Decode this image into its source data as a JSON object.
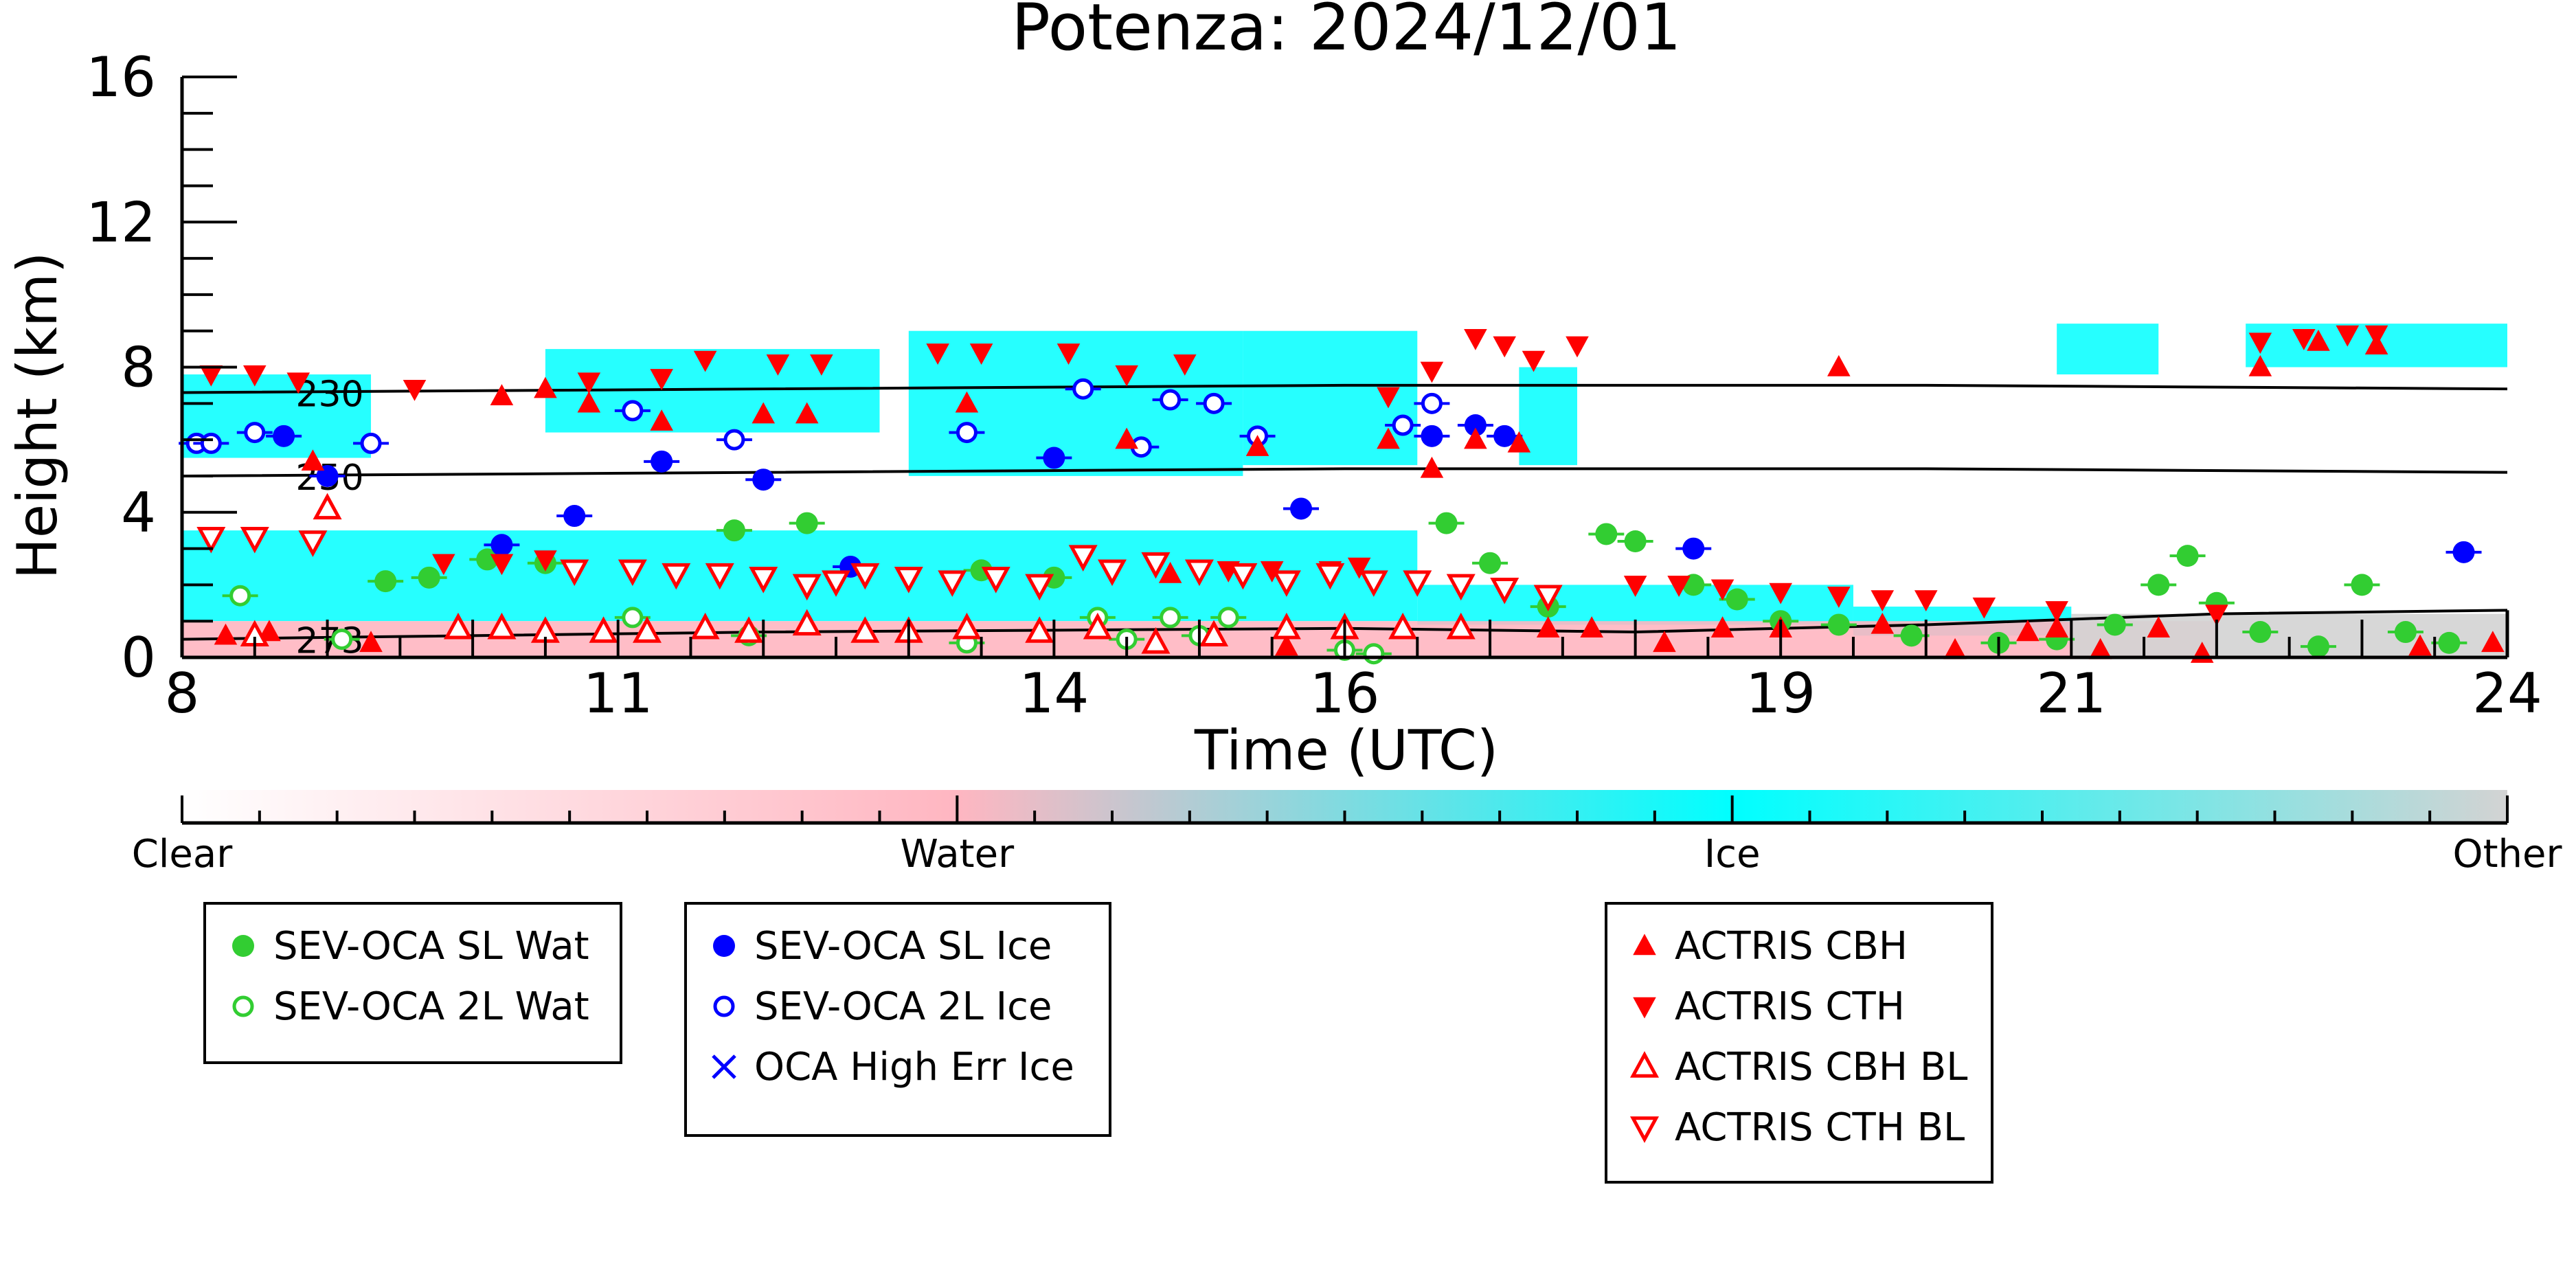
{
  "chart_data": {
    "type": "scatter",
    "title": "Potenza: 2024/12/01",
    "xlabel": "Time (UTC)",
    "ylabel": "Height (km)",
    "xlim": [
      8,
      24
    ],
    "ylim": [
      0,
      16
    ],
    "x_tick_labels": [
      "8",
      "11",
      "14",
      "16",
      "19",
      "21",
      "24"
    ],
    "y_tick_labels": [
      "0",
      "4",
      "8",
      "12",
      "16"
    ],
    "grid": false,
    "isotherms": [
      {
        "label": "230",
        "points": [
          [
            8,
            7.3
          ],
          [
            12,
            7.4
          ],
          [
            16,
            7.5
          ],
          [
            20,
            7.5
          ],
          [
            24,
            7.4
          ]
        ]
      },
      {
        "label": "250",
        "points": [
          [
            8,
            5.0
          ],
          [
            12,
            5.1
          ],
          [
            16,
            5.2
          ],
          [
            20,
            5.2
          ],
          [
            24,
            5.1
          ]
        ]
      },
      {
        "label": "273",
        "points": [
          [
            8,
            0.5
          ],
          [
            12,
            0.7
          ],
          [
            16,
            0.8
          ],
          [
            18,
            0.7
          ],
          [
            20,
            0.9
          ],
          [
            22,
            1.2
          ],
          [
            24,
            1.3
          ]
        ]
      }
    ],
    "phase_colorbar": {
      "labels": [
        "Clear",
        "Water",
        "Ice",
        "Other"
      ],
      "colors": [
        "#ffffff",
        "#ffb6c1",
        "#00ffff",
        "#d3d3d3"
      ]
    },
    "cloud_regions": [
      {
        "phase": "ice",
        "x0": 8.0,
        "x1": 9.3,
        "y0": 5.5,
        "y1": 7.8
      },
      {
        "phase": "ice",
        "x0": 10.5,
        "x1": 12.8,
        "y0": 6.2,
        "y1": 8.5
      },
      {
        "phase": "ice",
        "x0": 13.0,
        "x1": 15.3,
        "y0": 5.0,
        "y1": 9.0
      },
      {
        "phase": "ice",
        "x0": 15.3,
        "x1": 16.5,
        "y0": 5.3,
        "y1": 9.0
      },
      {
        "phase": "ice",
        "x0": 17.2,
        "x1": 17.6,
        "y0": 5.3,
        "y1": 8.0
      },
      {
        "phase": "ice",
        "x0": 20.9,
        "x1": 21.6,
        "y0": 7.8,
        "y1": 9.2
      },
      {
        "phase": "ice",
        "x0": 22.2,
        "x1": 24.0,
        "y0": 8.0,
        "y1": 9.2
      },
      {
        "phase": "ice",
        "x0": 8.0,
        "x1": 16.5,
        "y0": 1.0,
        "y1": 3.5
      },
      {
        "phase": "ice",
        "x0": 16.5,
        "x1": 19.5,
        "y0": 0.9,
        "y1": 2.0
      },
      {
        "phase": "ice",
        "x0": 19.5,
        "x1": 21.0,
        "y0": 0.6,
        "y1": 1.4
      },
      {
        "phase": "water",
        "x0": 8.0,
        "x1": 22.0,
        "y0": 0.0,
        "y1": 1.0
      },
      {
        "phase": "other",
        "x0": 21.0,
        "x1": 24.0,
        "y0": 0.0,
        "y1": 1.2
      }
    ],
    "series": [
      {
        "name": "SEV-OCA SL Wat",
        "marker": "filled-circle",
        "color": "#32cd32",
        "x": [
          9.4,
          9.7,
          10.1,
          10.5,
          11.8,
          12.3,
          13.5,
          14.0,
          16.7,
          17.0,
          17.4,
          17.8,
          18.0,
          18.4,
          18.7,
          19.0,
          19.4,
          19.9,
          20.5,
          20.9,
          21.3,
          21.6,
          21.8,
          22.0,
          22.3,
          22.7,
          23.0,
          23.3,
          23.6
        ],
        "y": [
          2.1,
          2.2,
          2.7,
          2.6,
          3.5,
          3.7,
          2.4,
          2.2,
          3.7,
          2.6,
          1.4,
          3.4,
          3.2,
          2.0,
          1.6,
          1.0,
          0.9,
          0.6,
          0.4,
          0.5,
          0.9,
          2.0,
          2.8,
          1.5,
          0.7,
          0.3,
          2.0,
          0.7,
          0.4
        ]
      },
      {
        "name": "SEV-OCA 2L Wat",
        "marker": "open-circle",
        "color": "#32cd32",
        "x": [
          8.4,
          9.1,
          11.1,
          11.9,
          13.4,
          14.3,
          14.5,
          14.8,
          15.0,
          15.2,
          16.0,
          16.2
        ],
        "y": [
          1.7,
          0.5,
          1.1,
          0.6,
          0.4,
          1.1,
          0.5,
          1.1,
          0.6,
          1.1,
          0.2,
          0.1
        ]
      },
      {
        "name": "SEV-OCA SL Ice",
        "marker": "filled-circle",
        "color": "#0000ff",
        "x": [
          8.7,
          9.0,
          10.2,
          10.7,
          11.3,
          12.0,
          12.6,
          14.0,
          15.7,
          16.6,
          16.9,
          17.1,
          18.4,
          23.7
        ],
        "y": [
          6.1,
          5.0,
          3.1,
          3.9,
          5.4,
          4.9,
          2.5,
          5.5,
          4.1,
          6.1,
          6.4,
          6.1,
          3.0,
          2.9
        ]
      },
      {
        "name": "SEV-OCA 2L Ice",
        "marker": "open-circle",
        "color": "#0000ff",
        "x": [
          8.1,
          8.2,
          8.5,
          9.3,
          11.1,
          11.8,
          13.4,
          14.2,
          14.6,
          14.8,
          15.1,
          15.4,
          16.4,
          16.6
        ],
        "y": [
          5.9,
          5.9,
          6.2,
          5.9,
          6.8,
          6.0,
          6.2,
          7.4,
          5.8,
          7.1,
          7.0,
          6.1,
          6.4,
          7.0
        ]
      },
      {
        "name": "OCA High Err Ice",
        "marker": "cross",
        "color": "#0000ff",
        "x": [],
        "y": []
      },
      {
        "name": "ACTRIS CBH",
        "marker": "triangle-up",
        "color": "#ff0000",
        "x": [
          8.3,
          8.6,
          8.9,
          9.3,
          10.2,
          10.5,
          10.8,
          11.3,
          12.0,
          12.3,
          13.4,
          14.5,
          14.8,
          15.4,
          15.6,
          16.0,
          16.3,
          16.6,
          16.9,
          17.2,
          17.4,
          17.7,
          18.2,
          18.6,
          19.0,
          19.4,
          19.7,
          20.2,
          20.7,
          20.9,
          21.2,
          21.6,
          21.9,
          22.3,
          22.7,
          23.1,
          23.4,
          23.9
        ],
        "y": [
          0.6,
          0.7,
          5.4,
          0.4,
          7.2,
          7.4,
          7.0,
          6.5,
          6.7,
          6.7,
          7.0,
          6.0,
          2.3,
          5.8,
          0.3,
          0.8,
          6.0,
          5.2,
          6.0,
          5.9,
          0.8,
          0.8,
          0.4,
          0.8,
          0.8,
          8.0,
          0.9,
          0.2,
          0.7,
          0.8,
          0.2,
          0.8,
          0.1,
          8.0,
          8.7,
          8.6,
          0.3,
          0.4
        ]
      },
      {
        "name": "ACTRIS CTH",
        "marker": "triangle-down",
        "color": "#ff0000",
        "x": [
          8.2,
          8.5,
          8.8,
          9.6,
          9.8,
          10.2,
          10.5,
          10.8,
          11.3,
          11.6,
          12.1,
          12.4,
          13.2,
          13.5,
          14.1,
          14.5,
          14.9,
          15.2,
          15.5,
          15.9,
          16.1,
          16.3,
          16.6,
          16.9,
          17.1,
          17.3,
          17.6,
          18.0,
          18.3,
          18.6,
          19.0,
          19.4,
          19.7,
          20.0,
          20.4,
          20.9,
          22.0,
          22.3,
          22.6,
          22.9,
          23.1
        ],
        "y": [
          7.8,
          7.8,
          7.6,
          7.4,
          2.6,
          2.6,
          2.7,
          7.6,
          7.7,
          8.2,
          8.1,
          8.1,
          8.4,
          8.4,
          8.4,
          7.8,
          8.1,
          2.4,
          2.4,
          2.4,
          2.5,
          7.2,
          7.9,
          8.8,
          8.6,
          8.2,
          8.6,
          2.0,
          2.0,
          1.9,
          1.8,
          1.7,
          1.6,
          1.6,
          1.4,
          1.3,
          1.2,
          8.7,
          8.8,
          8.9,
          8.9
        ]
      },
      {
        "name": "ACTRIS CBH BL",
        "marker": "open-triangle-up",
        "color": "#ff0000",
        "x": [
          8.5,
          9.0,
          9.9,
          10.2,
          10.5,
          10.9,
          11.2,
          11.6,
          11.9,
          12.3,
          12.7,
          13.0,
          13.4,
          13.9,
          14.3,
          14.7,
          15.1,
          15.6,
          16.0,
          16.4,
          16.8
        ],
        "y": [
          0.6,
          4.1,
          0.8,
          0.8,
          0.7,
          0.7,
          0.7,
          0.8,
          0.7,
          0.9,
          0.7,
          0.7,
          0.8,
          0.7,
          0.8,
          0.4,
          0.6,
          0.8,
          0.8,
          0.8,
          0.8
        ],
        "note": ""
      },
      {
        "name": "ACTRIS CTH BL",
        "marker": "open-triangle-down",
        "color": "#ff0000",
        "x": [
          8.2,
          8.5,
          8.9,
          10.7,
          11.1,
          11.4,
          11.7,
          12.0,
          12.3,
          12.5,
          12.7,
          13.0,
          13.3,
          13.6,
          13.9,
          14.2,
          14.4,
          14.7,
          15.0,
          15.3,
          15.6,
          15.9,
          16.2,
          16.5,
          16.8,
          17.1,
          17.4
        ],
        "y": [
          3.3,
          3.3,
          3.2,
          2.4,
          2.4,
          2.3,
          2.3,
          2.2,
          2.0,
          2.1,
          2.3,
          2.2,
          2.1,
          2.2,
          2.0,
          2.8,
          2.4,
          2.6,
          2.4,
          2.3,
          2.1,
          2.3,
          2.1,
          2.1,
          2.0,
          1.9,
          1.7
        ]
      }
    ]
  },
  "legends": [
    {
      "entries": [
        "SEV-OCA SL Wat",
        "SEV-OCA 2L Wat"
      ]
    },
    {
      "entries": [
        "SEV-OCA SL Ice",
        "SEV-OCA 2L Ice",
        "OCA High Err Ice"
      ]
    },
    {
      "entries": [
        "ACTRIS CBH",
        "ACTRIS CTH",
        "ACTRIS CBH BL",
        "ACTRIS CTH BL"
      ]
    }
  ]
}
